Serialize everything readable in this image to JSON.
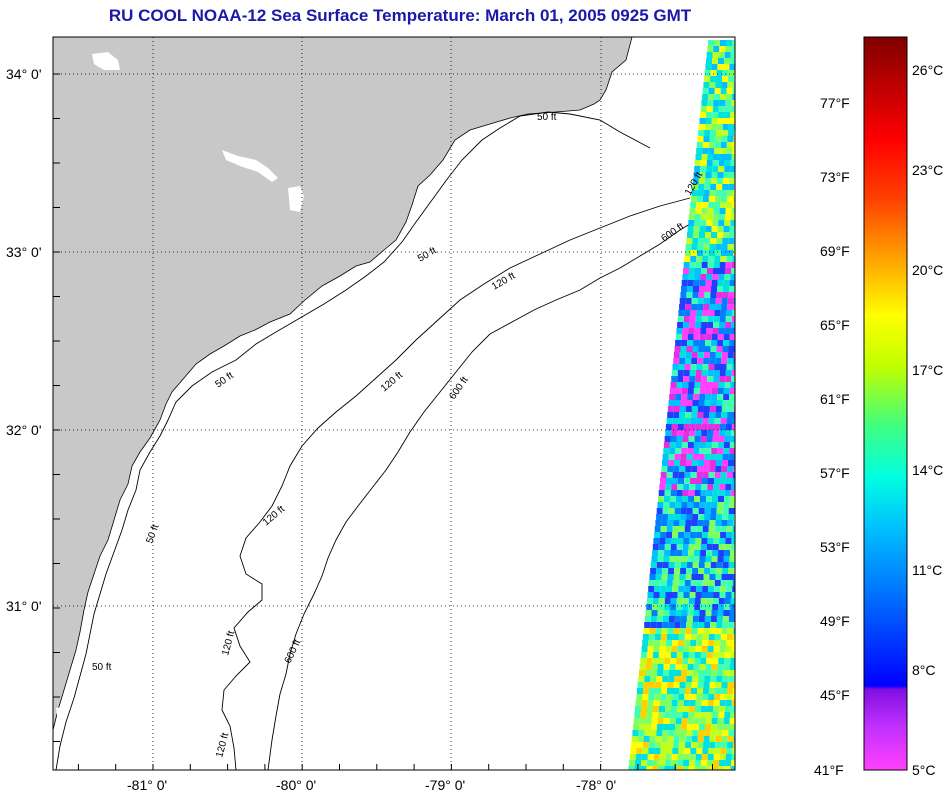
{
  "title": "RU COOL  NOAA-12  Sea Surface Temperature:  March 01, 2005 0925 GMT",
  "map": {
    "lat_labels": [
      "34° 0'",
      "33° 0'",
      "32° 0'",
      "31° 0'"
    ],
    "lon_labels": [
      "-81° 0'",
      "-80° 0'",
      "-79° 0'",
      "-78° 0'"
    ],
    "contour_labels": [
      "50 ft",
      "50 ft",
      "50 ft",
      "50 ft",
      "50 ft",
      "120 ft",
      "120 ft",
      "120 ft",
      "120 ft",
      "120 ft",
      "120 ft",
      "600 ft",
      "600 ft",
      "600 ft"
    ],
    "colors": {
      "land": "#c8c8c8",
      "ocean": "#ffffff",
      "grid": "#000000"
    }
  },
  "colorbar": {
    "fahrenheit_labels": [
      "77°F",
      "73°F",
      "69°F",
      "65°F",
      "61°F",
      "57°F",
      "53°F",
      "49°F",
      "45°F",
      "41°F"
    ],
    "celsius_labels": [
      "26°C",
      "23°C",
      "20°C",
      "17°C",
      "14°C",
      "11°C",
      "8°C",
      "5°C"
    ]
  }
}
